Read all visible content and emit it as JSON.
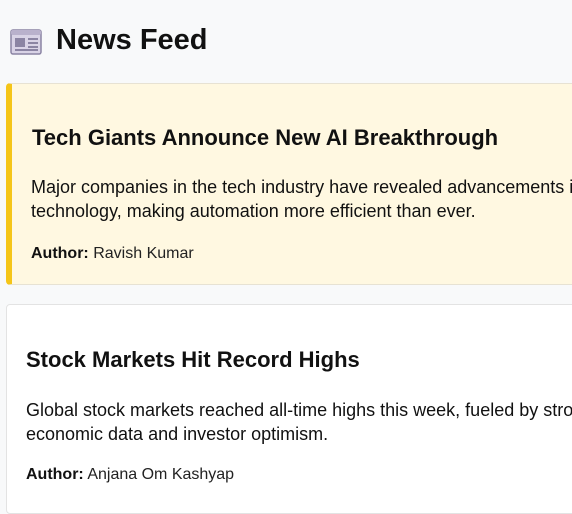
{
  "header": {
    "title": "News Feed",
    "icon": "newspaper-icon"
  },
  "colors": {
    "highlight_card_background": "#fff8e1",
    "highlight_card_accent": "#f5c518",
    "page_background": "#f8f9fa"
  },
  "articles": [
    {
      "title": "Tech Giants Announce New AI Breakthrough",
      "body_line_1": "Major companies in the tech industry have revealed advancements in AI",
      "body_line_2": "technology, making automation more efficient than ever.",
      "author_label": "Author:",
      "author": "Ravish Kumar",
      "highlighted": true
    },
    {
      "title": "Stock Markets Hit Record Highs",
      "body_line_1": "Global stock markets reached all-time highs this week, fueled by strong",
      "body_line_2": "economic data and investor optimism.",
      "author_label": "Author:",
      "author": "Anjana Om Kashyap",
      "highlighted": false
    }
  ]
}
